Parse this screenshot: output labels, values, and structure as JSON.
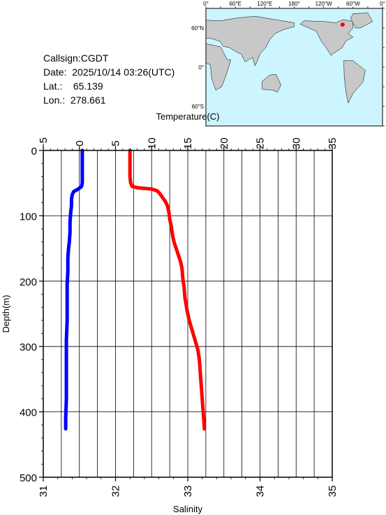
{
  "header": {
    "callsign_label": "Callsign:",
    "callsign": "CGDT",
    "date_label": "Date:",
    "date": "2025/10/14 03:26(UTC)",
    "lat_label": "Lat.:",
    "lat": "65.139",
    "lon_label": "Lon.:",
    "lon": "278.661"
  },
  "map": {
    "top_labels": [
      "0°",
      "60°E",
      "120°E",
      "180°",
      "120°W",
      "60°W",
      "0°"
    ],
    "left_labels": [
      "60°N",
      "0°",
      "60°S"
    ],
    "ocean_color": "#ccf5ff",
    "land_color": "#c8c8c8",
    "marker_color": "#ff0000"
  },
  "chart_data": {
    "type": "line",
    "top_axis": {
      "label": "Temperature(C)",
      "range": [
        -5,
        35
      ],
      "ticks": [
        "−5",
        "0",
        "5",
        "10",
        "15",
        "20",
        "25",
        "30",
        "35"
      ]
    },
    "bottom_axis": {
      "label": "Salinity",
      "range": [
        31,
        35
      ],
      "ticks": [
        "31",
        "32",
        "33",
        "34",
        "35"
      ]
    },
    "left_axis": {
      "label": "Depth(m)",
      "range": [
        0,
        500
      ],
      "inverted": true,
      "ticks": [
        "0",
        "100",
        "200",
        "300",
        "400",
        "500"
      ]
    },
    "grid": true,
    "series": [
      {
        "name": "Salinity",
        "axis": "bottom",
        "color": "#0000ff",
        "points": [
          [
            31.54,
            0
          ],
          [
            31.54,
            10
          ],
          [
            31.54,
            20
          ],
          [
            31.54,
            30
          ],
          [
            31.54,
            40
          ],
          [
            31.54,
            50
          ],
          [
            31.53,
            55
          ],
          [
            31.51,
            57
          ],
          [
            31.47,
            60
          ],
          [
            31.42,
            63
          ],
          [
            31.4,
            68
          ],
          [
            31.39,
            75
          ],
          [
            31.39,
            85
          ],
          [
            31.38,
            95
          ],
          [
            31.37,
            110
          ],
          [
            31.37,
            125
          ],
          [
            31.36,
            140
          ],
          [
            31.35,
            150
          ],
          [
            31.34,
            165
          ],
          [
            31.34,
            185
          ],
          [
            31.33,
            205
          ],
          [
            31.33,
            230
          ],
          [
            31.33,
            260
          ],
          [
            31.32,
            290
          ],
          [
            31.32,
            320
          ],
          [
            31.32,
            350
          ],
          [
            31.32,
            380
          ],
          [
            31.31,
            410
          ],
          [
            31.31,
            426
          ]
        ]
      },
      {
        "name": "Temperature",
        "axis": "top",
        "color": "#ff0000",
        "points": [
          [
            7.0,
            0
          ],
          [
            7.0,
            10
          ],
          [
            7.0,
            20
          ],
          [
            7.0,
            30
          ],
          [
            7.0,
            40
          ],
          [
            7.1,
            50
          ],
          [
            7.3,
            55
          ],
          [
            8.0,
            57
          ],
          [
            9.0,
            58
          ],
          [
            10.0,
            59
          ],
          [
            10.8,
            62
          ],
          [
            11.2,
            67
          ],
          [
            11.5,
            72
          ],
          [
            11.9,
            78
          ],
          [
            12.2,
            85
          ],
          [
            12.4,
            95
          ],
          [
            12.5,
            105
          ],
          [
            12.7,
            115
          ],
          [
            12.9,
            130
          ],
          [
            13.1,
            140
          ],
          [
            13.4,
            150
          ],
          [
            13.7,
            160
          ],
          [
            14.0,
            170
          ],
          [
            14.2,
            180
          ],
          [
            14.3,
            195
          ],
          [
            14.5,
            210
          ],
          [
            14.6,
            225
          ],
          [
            14.9,
            245
          ],
          [
            15.2,
            260
          ],
          [
            15.6,
            275
          ],
          [
            16.0,
            290
          ],
          [
            16.4,
            305
          ],
          [
            16.6,
            320
          ],
          [
            16.7,
            335
          ],
          [
            16.8,
            350
          ],
          [
            16.9,
            365
          ],
          [
            17.0,
            380
          ],
          [
            17.1,
            395
          ],
          [
            17.2,
            410
          ],
          [
            17.3,
            426
          ]
        ]
      }
    ]
  }
}
